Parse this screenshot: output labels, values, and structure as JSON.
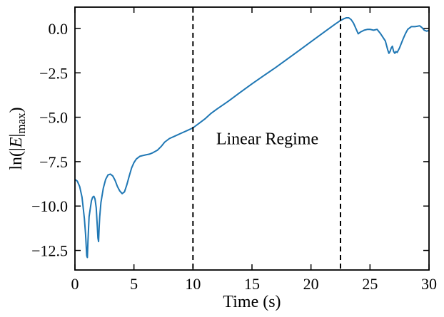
{
  "chart_data": {
    "type": "line",
    "title": "",
    "xlabel": "Time (s)",
    "ylabel": {
      "prefix": "ln(|",
      "var": "E",
      "mid": "|",
      "sub": "max",
      "suffix": ")"
    },
    "xlim": [
      0,
      30
    ],
    "ylim": [
      -13.6,
      1.2
    ],
    "xticks": [
      0,
      5,
      10,
      15,
      20,
      25,
      30
    ],
    "xtick_labels": [
      "0",
      "5",
      "10",
      "15",
      "20",
      "25",
      "30"
    ],
    "yticks": [
      0.0,
      -2.5,
      -5.0,
      -7.5,
      -10.0,
      -12.5
    ],
    "ytick_labels": [
      "0.0",
      "−2.5",
      "−5.0",
      "−7.5",
      "−10.0",
      "−12.5"
    ],
    "grid": false,
    "series_color": "#1f77b4",
    "vlines": [
      10,
      22.5
    ],
    "vline_style": "dashed",
    "vline_color": "#000000",
    "annotation": {
      "text": "Linear Regime",
      "x": 16.3,
      "y": -6.2
    },
    "series": [
      {
        "x": [
          0.0,
          0.2,
          0.4,
          0.6,
          0.8,
          0.9,
          1.0,
          1.05,
          1.1,
          1.2,
          1.4,
          1.5,
          1.6,
          1.7,
          1.8,
          1.9,
          1.95,
          2.0,
          2.05,
          2.1,
          2.2,
          2.4,
          2.6,
          2.8,
          3.0,
          3.2,
          3.4,
          3.6,
          3.8,
          4.0,
          4.2,
          4.4,
          4.6,
          4.8,
          5.0,
          5.2,
          5.5,
          5.8,
          6.0,
          6.3,
          6.6,
          7.0,
          7.3,
          7.6,
          8.0,
          8.5,
          9.0,
          9.5,
          10.0,
          10.5,
          11.0,
          11.5,
          12.0,
          13.0,
          14.0,
          15.0,
          16.0,
          17.0,
          18.0,
          19.0,
          20.0,
          21.0,
          22.0,
          22.5,
          22.8,
          23.0,
          23.2,
          23.4,
          23.6,
          23.8,
          24.0,
          24.2,
          24.5,
          24.8,
          25.0,
          25.3,
          25.6,
          25.9,
          26.1,
          26.3,
          26.5,
          26.6,
          26.7,
          26.8,
          26.9,
          27.0,
          27.1,
          27.2,
          27.3,
          27.5,
          27.8,
          28.0,
          28.2,
          28.5,
          28.8,
          29.0,
          29.2,
          29.4,
          29.6,
          29.8,
          30.0
        ],
        "y": [
          -8.5,
          -8.6,
          -8.9,
          -9.5,
          -10.7,
          -11.6,
          -12.8,
          -12.9,
          -12.0,
          -10.6,
          -9.7,
          -9.5,
          -9.45,
          -9.6,
          -10.1,
          -11.2,
          -11.8,
          -12.0,
          -11.2,
          -10.6,
          -9.8,
          -9.0,
          -8.5,
          -8.25,
          -8.2,
          -8.3,
          -8.55,
          -8.9,
          -9.15,
          -9.3,
          -9.2,
          -8.8,
          -8.3,
          -7.85,
          -7.55,
          -7.35,
          -7.2,
          -7.15,
          -7.12,
          -7.08,
          -7.0,
          -6.85,
          -6.65,
          -6.4,
          -6.2,
          -6.05,
          -5.9,
          -5.75,
          -5.6,
          -5.35,
          -5.1,
          -4.8,
          -4.55,
          -4.1,
          -3.6,
          -3.12,
          -2.66,
          -2.2,
          -1.72,
          -1.24,
          -0.75,
          -0.26,
          0.22,
          0.45,
          0.55,
          0.6,
          0.6,
          0.5,
          0.3,
          0.0,
          -0.3,
          -0.2,
          -0.1,
          -0.05,
          -0.05,
          -0.1,
          -0.05,
          -0.3,
          -0.5,
          -0.7,
          -1.2,
          -1.4,
          -1.3,
          -1.1,
          -1.0,
          -1.3,
          -1.4,
          -1.3,
          -1.35,
          -1.1,
          -0.6,
          -0.3,
          -0.05,
          0.1,
          0.1,
          0.12,
          0.15,
          0.05,
          -0.1,
          -0.15,
          -0.12
        ]
      }
    ]
  }
}
